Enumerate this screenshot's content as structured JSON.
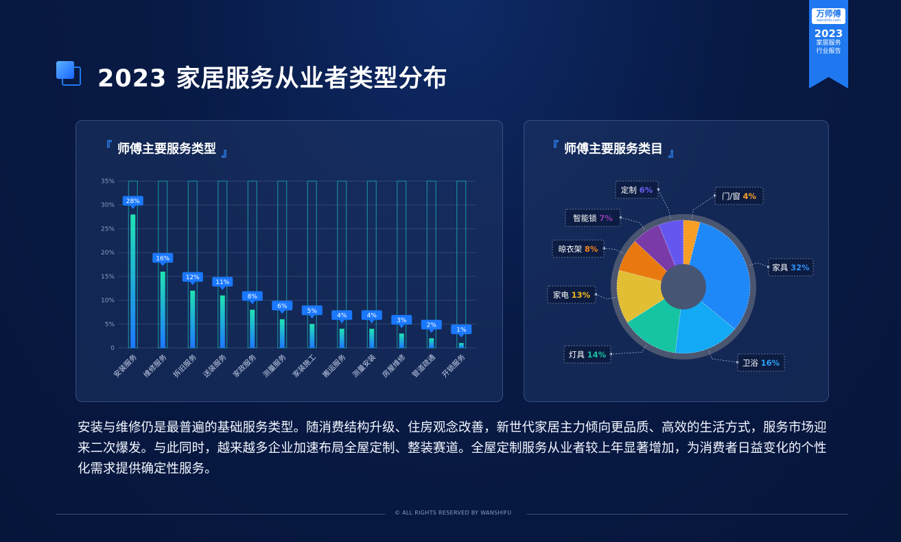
{
  "title": "2023 家居服务从业者类型分布",
  "ribbon": {
    "logo": "万师傅",
    "logo_url": "wanshifu.com",
    "year": "2023",
    "line1": "家居服务",
    "line2": "行业报告"
  },
  "left_panel": {
    "title": "师傅主要服务类型",
    "bracket_open": "『",
    "bracket_close": "』"
  },
  "right_panel": {
    "title": "师傅主要服务类目",
    "bracket_open": "『",
    "bracket_close": "』"
  },
  "chart_data": [
    {
      "type": "bar",
      "title": "师傅主要服务类型",
      "categories": [
        "安装服务",
        "维修服务",
        "拆旧服务",
        "送装服务",
        "家政服务",
        "测量服务",
        "家装施工",
        "搬运服务",
        "测量安装",
        "房屋维修",
        "管道疏通",
        "开锁服务"
      ],
      "values": [
        28,
        16,
        12,
        11,
        8,
        6,
        5,
        4,
        4,
        3,
        2,
        1
      ],
      "value_labels": [
        "28%",
        "16%",
        "12%",
        "11%",
        "8%",
        "6%",
        "5%",
        "4%",
        "4%",
        "3%",
        "2%",
        "1%"
      ],
      "ylim": [
        0,
        35
      ],
      "yticks": [
        "0",
        "5%",
        "10%",
        "15%",
        "20%",
        "25%",
        "30%",
        "35%"
      ],
      "grid": true
    },
    {
      "type": "pie",
      "title": "师傅主要服务类目",
      "labels": [
        "家具",
        "卫浴",
        "灯具",
        "家电",
        "晾衣架",
        "智能锁",
        "定制",
        "门/窗"
      ],
      "values": [
        32,
        16,
        14,
        13,
        8,
        7,
        6,
        4
      ],
      "value_labels": [
        "32%",
        "16%",
        "14%",
        "13%",
        "8%",
        "7%",
        "6%",
        "4%"
      ],
      "colors": [
        "#1e88f8",
        "#13a9f4",
        "#16c3a3",
        "#e2be34",
        "#e9790e",
        "#7a3aa8",
        "#6457ef",
        "#f79e27"
      ],
      "value_colors": [
        "#2d8ff6",
        "#2aa2f5",
        "#17c2a0",
        "#f2b81c",
        "#f2841c",
        "#8b3fb0",
        "#6c5ef2",
        "#f7a12a"
      ]
    }
  ],
  "description": "安装与维修仍是最普遍的基础服务类型。随消费结构升级、住房观念改善，新世代家居主力倾向更品质、高效的生活方式，服务市场迎来二次爆发。与此同时，越来越多企业加速布局全屋定制、整装赛道。全屋定制服务从业者较上年显著增加，为消费者日益变化的个性化需求提供确定性服务。",
  "footer": "© ALL RIGHTS RESERVED BY WANSHIFU"
}
